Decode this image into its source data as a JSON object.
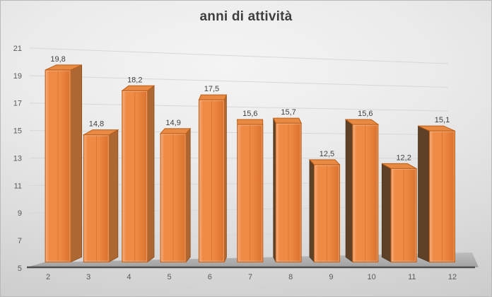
{
  "title": "anni di attività",
  "chart_data": {
    "type": "bar",
    "variant": "3d-column-perspective",
    "title": "anni di attività",
    "categories": [
      "2",
      "3",
      "4",
      "5",
      "6",
      "7",
      "8",
      "9",
      "10",
      "11",
      "12"
    ],
    "values": [
      19.8,
      14.8,
      18.2,
      14.9,
      17.5,
      15.6,
      15.7,
      12.5,
      15.6,
      12.2,
      15.1
    ],
    "value_labels": [
      "19,8",
      "14,8",
      "18,2",
      "14,9",
      "17,5",
      "15,6",
      "15,7",
      "12,5",
      "15,6",
      "12,2",
      "15,1"
    ],
    "xlabel": "",
    "ylabel": "",
    "y_axis": {
      "min": 5,
      "max": 21,
      "step": 2,
      "tick_labels": [
        "5",
        "7",
        "9",
        "11",
        "13",
        "15",
        "17",
        "19",
        "21"
      ]
    },
    "grid": true,
    "legend": "none"
  },
  "colors": {
    "accent": "#ED7D31",
    "bar_front_mid": "#EF8A45",
    "bar_front_light": "#F5A066",
    "bar_front_dark": "#DD7530",
    "bar_border": "#C2641F",
    "bar_top": "#E98A44",
    "bar_top_border": "#BA5D14",
    "bar_side_right": "#AD6733",
    "bar_side_left": "#5E4126",
    "floor_light": "#BDBDBD",
    "floor_dark": "#A2A2A2",
    "axis_line": "#4E4E4E",
    "gridline": "#D7D7D7",
    "tick_text": "#595959",
    "label_text": "#404040",
    "title_text": "#3F3F3F"
  }
}
